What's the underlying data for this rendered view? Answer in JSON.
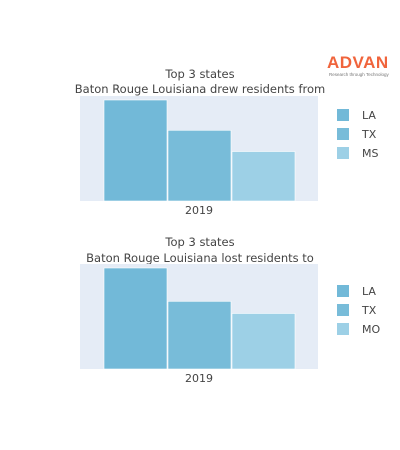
{
  "logo": {
    "name": "ADVAN",
    "tagline": "Research through Technology"
  },
  "chart_data": [
    {
      "type": "bar",
      "title": "Top 3 states",
      "subtitle": "Baton Rouge Louisiana drew residents from",
      "categories": [
        "2019"
      ],
      "series": [
        {
          "name": "LA",
          "values": [
            100
          ],
          "color": "#72b9d8"
        },
        {
          "name": "TX",
          "values": [
            70
          ],
          "color": "#78bcd9"
        },
        {
          "name": "MS",
          "values": [
            49
          ],
          "color": "#9dd0e6"
        }
      ],
      "ylim": [
        0,
        100
      ],
      "grid": false,
      "legend": "right",
      "plot_bg": "#e5ecf6"
    },
    {
      "type": "bar",
      "title": "Top 3 states",
      "subtitle": "Baton Rouge Louisiana lost residents to",
      "categories": [
        "2019"
      ],
      "series": [
        {
          "name": "LA",
          "values": [
            100
          ],
          "color": "#72b9d8"
        },
        {
          "name": "TX",
          "values": [
            67
          ],
          "color": "#78bcd9"
        },
        {
          "name": "MO",
          "values": [
            55
          ],
          "color": "#9dd0e6"
        }
      ],
      "ylim": [
        0,
        100
      ],
      "grid": false,
      "legend": "right",
      "plot_bg": "#e5ecf6"
    }
  ]
}
